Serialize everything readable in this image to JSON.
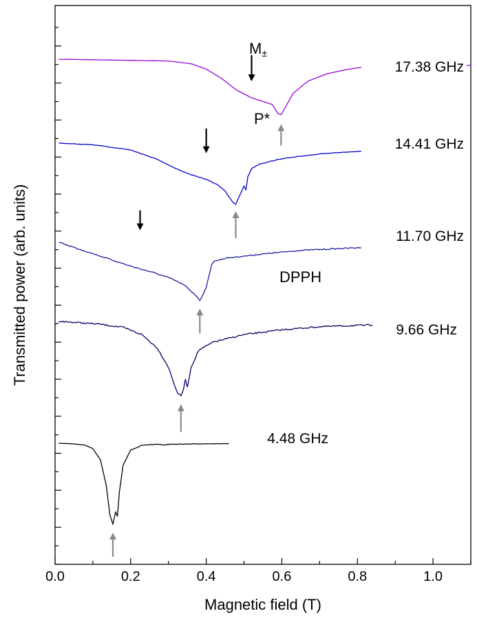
{
  "chart_data": {
    "type": "line",
    "title": "",
    "xlabel": "Magnetic field (T)",
    "ylabel": "Transmitted power (arb. units)",
    "xlim": [
      0.0,
      1.1
    ],
    "x_ticks": [
      "0.0",
      "0.2",
      "0.4",
      "0.6",
      "0.8",
      "1.0"
    ],
    "y_tick_labels": "none",
    "grid": false,
    "legend": "none",
    "series": [
      {
        "name": "17.38 GHz",
        "color": "#9a00d6",
        "x": [
          0.01,
          0.3,
          0.36,
          0.4,
          0.44,
          0.48,
          0.52,
          0.55,
          0.575,
          0.59,
          0.598,
          0.61,
          0.63,
          0.67,
          0.72,
          0.77,
          0.81
        ],
        "y": [
          0.0,
          -0.04,
          -0.1,
          -0.22,
          -0.42,
          -0.68,
          -0.85,
          -0.93,
          -1.0,
          -1.2,
          -1.22,
          -1.05,
          -0.75,
          -0.48,
          -0.32,
          -0.23,
          -0.18
        ]
      },
      {
        "name": "14.41 GHz",
        "color": "#0000cc",
        "x": [
          0.01,
          0.1,
          0.2,
          0.27,
          0.32,
          0.36,
          0.4,
          0.43,
          0.45,
          0.46,
          0.47,
          0.478,
          0.49,
          0.5,
          0.505,
          0.51,
          0.52,
          0.54,
          0.6,
          0.7,
          0.81
        ],
        "y": [
          0.0,
          -0.06,
          -0.25,
          -0.6,
          -0.95,
          -1.18,
          -1.35,
          -1.55,
          -1.78,
          -2.0,
          -2.2,
          -2.28,
          -1.9,
          -1.6,
          -1.75,
          -1.25,
          -0.95,
          -0.78,
          -0.58,
          -0.4,
          -0.3
        ]
      },
      {
        "name": "11.70 GHz",
        "color": "#1a1aa0",
        "x": [
          0.01,
          0.06,
          0.12,
          0.2,
          0.26,
          0.31,
          0.345,
          0.37,
          0.383,
          0.39,
          0.4,
          0.41,
          0.414,
          0.42,
          0.45,
          0.55,
          0.65,
          0.81
        ],
        "y": [
          0.0,
          -0.3,
          -0.65,
          -1.12,
          -1.42,
          -1.72,
          -2.05,
          -2.45,
          -2.72,
          -2.5,
          -2.1,
          -1.4,
          -1.05,
          -0.9,
          -0.75,
          -0.55,
          -0.38,
          -0.25
        ]
      },
      {
        "name": "9.66 GHz",
        "color": "#000066",
        "x": [
          0.01,
          0.06,
          0.12,
          0.18,
          0.23,
          0.27,
          0.3,
          0.315,
          0.325,
          0.333,
          0.34,
          0.345,
          0.35,
          0.36,
          0.38,
          0.42,
          0.5,
          0.6,
          0.7,
          0.84
        ],
        "y": [
          0.0,
          -0.05,
          -0.12,
          -0.25,
          -0.55,
          -1.1,
          -1.9,
          -2.6,
          -3.0,
          -3.1,
          -2.8,
          -2.4,
          -2.75,
          -1.9,
          -1.2,
          -0.85,
          -0.55,
          -0.35,
          -0.22,
          -0.15
        ]
      },
      {
        "name": "4.48 GHz",
        "color": "#000000",
        "x": [
          0.01,
          0.05,
          0.08,
          0.1,
          0.12,
          0.135,
          0.145,
          0.153,
          0.16,
          0.165,
          0.17,
          0.18,
          0.2,
          0.23,
          0.27,
          0.29,
          0.3,
          0.35,
          0.4,
          0.46
        ],
        "y": [
          0.0,
          -0.05,
          -0.15,
          -0.4,
          -1.2,
          -3.0,
          -5.2,
          -5.9,
          -5.0,
          -5.3,
          -3.6,
          -1.6,
          -0.5,
          -0.15,
          -0.08,
          -0.13,
          -0.08,
          -0.06,
          -0.04,
          -0.03
        ]
      }
    ],
    "annotations": [
      {
        "text": "M±",
        "x": 0.55
      },
      {
        "text": "P*",
        "x": 0.57
      },
      {
        "text": "DPPH",
        "x": 0.57
      }
    ],
    "arrows": [
      {
        "series": "17.38 GHz",
        "kind": "black",
        "x": 0.52
      },
      {
        "series": "17.38 GHz",
        "kind": "gray",
        "x": 0.598
      },
      {
        "series": "14.41 GHz",
        "kind": "black",
        "x": 0.4
      },
      {
        "series": "14.41 GHz",
        "kind": "gray",
        "x": 0.478
      },
      {
        "series": "11.70 GHz",
        "kind": "black",
        "x": 0.225
      },
      {
        "series": "11.70 GHz",
        "kind": "gray",
        "x": 0.383
      },
      {
        "series": "9.66 GHz",
        "kind": "gray",
        "x": 0.333
      },
      {
        "series": "4.48 GHz",
        "kind": "gray",
        "x": 0.153
      }
    ],
    "arrow_colors": {
      "black": "#000000",
      "gray": "#8a8a8a"
    }
  }
}
